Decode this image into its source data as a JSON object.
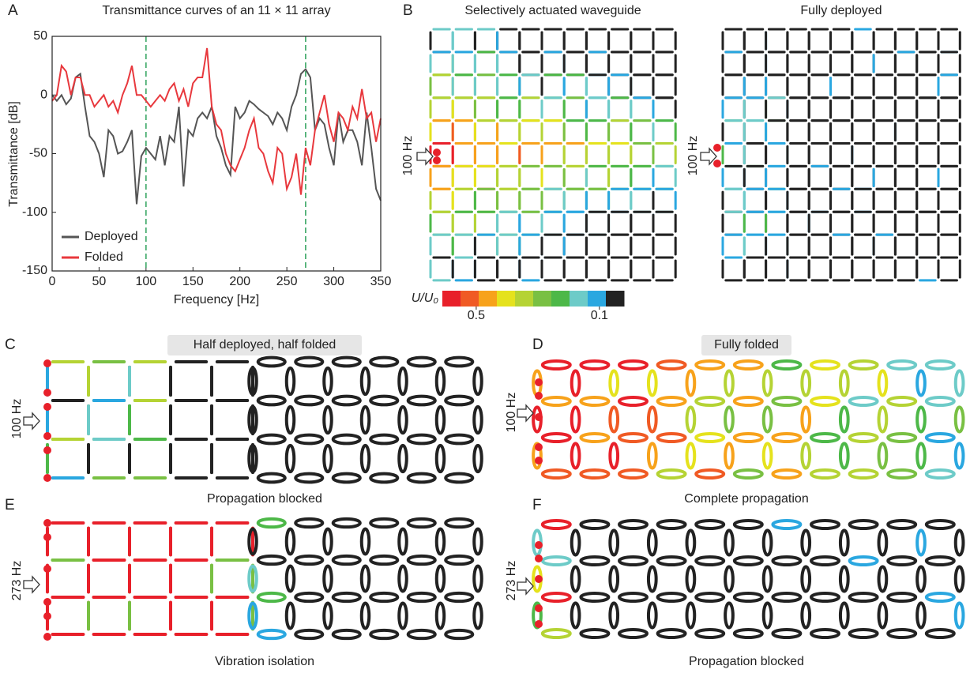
{
  "chart_data": {
    "type": "line",
    "title": "Transmittance curves of an 11 × 11 array",
    "xlabel": "Frequency [Hz]",
    "ylabel": "Transmittance [dB]",
    "x": [
      0,
      5,
      10,
      15,
      20,
      25,
      30,
      35,
      40,
      45,
      50,
      55,
      60,
      65,
      70,
      75,
      80,
      85,
      90,
      95,
      100,
      105,
      110,
      115,
      120,
      125,
      130,
      135,
      140,
      145,
      150,
      155,
      160,
      165,
      170,
      175,
      180,
      185,
      190,
      195,
      200,
      205,
      210,
      215,
      220,
      225,
      230,
      235,
      240,
      245,
      250,
      255,
      260,
      265,
      270,
      275,
      280,
      285,
      290,
      295,
      300,
      305,
      310,
      315,
      320,
      325,
      330,
      335,
      340,
      345,
      350
    ],
    "xlim": [
      0,
      350
    ],
    "ylim": [
      -150,
      50
    ],
    "xticks": [
      0,
      50,
      100,
      150,
      200,
      250,
      300,
      350
    ],
    "yticks": [
      -150,
      -100,
      -50,
      0,
      50
    ],
    "reference_lines": [
      100,
      270
    ],
    "reference_color": "#2ca05a",
    "legend": "lower left",
    "series": [
      {
        "name": "Deployed",
        "color": "#555555",
        "values": [
          0,
          -5,
          0,
          -8,
          -3,
          15,
          18,
          -10,
          -35,
          -40,
          -50,
          -70,
          -30,
          -35,
          -50,
          -48,
          -40,
          -30,
          -93,
          -52,
          -45,
          -50,
          -55,
          -35,
          -60,
          -35,
          -40,
          -10,
          -78,
          -30,
          -35,
          -20,
          -15,
          -20,
          -10,
          -35,
          -45,
          -60,
          -68,
          -10,
          -20,
          -15,
          -5,
          -8,
          -12,
          -15,
          -18,
          -25,
          -15,
          -20,
          -30,
          -10,
          0,
          18,
          22,
          15,
          -30,
          -20,
          -25,
          -45,
          -60,
          -15,
          -40,
          -30,
          -30,
          -40,
          -60,
          -15,
          -45,
          -80,
          -90
        ]
      },
      {
        "name": "Folded",
        "color": "#e8383d",
        "values": [
          -5,
          0,
          25,
          20,
          0,
          15,
          15,
          0,
          0,
          -10,
          -5,
          0,
          -10,
          -5,
          -15,
          0,
          10,
          25,
          0,
          0,
          -5,
          -10,
          -5,
          0,
          -5,
          5,
          10,
          -5,
          5,
          -10,
          10,
          15,
          15,
          40,
          -10,
          -25,
          -30,
          -50,
          -60,
          -65,
          -55,
          -45,
          -30,
          -20,
          -45,
          -50,
          -65,
          -75,
          -45,
          -50,
          -80,
          -70,
          -50,
          -85,
          -45,
          -60,
          -30,
          -15,
          0,
          -25,
          -40,
          -15,
          -20,
          -30,
          -10,
          -20,
          5,
          -20,
          -15,
          -40,
          -20
        ]
      }
    ]
  },
  "panel_labels": [
    "A",
    "B",
    "C",
    "D",
    "E",
    "F"
  ],
  "panel_b": {
    "left_title": "Selectively actuated waveguide",
    "right_title": "Fully deployed",
    "frequency": "100 Hz",
    "colorbar": {
      "label": "U/U₀",
      "range": [
        0.61,
        0.02
      ],
      "ticks": [
        0.5,
        0.1
      ],
      "colors": [
        "#e8202a",
        "#f05a24",
        "#f7a21b",
        "#e5e21d",
        "#b5d334",
        "#79c043",
        "#4db848",
        "#6dcbc8",
        "#2aa7e0",
        "#222222"
      ]
    }
  },
  "panel_c": {
    "title": "Half deployed, half folded",
    "frequency": "100 Hz",
    "caption": "Propagation blocked"
  },
  "panel_d": {
    "title": "Fully folded",
    "frequency": "100 Hz",
    "caption": "Complete propagation"
  },
  "panel_e": {
    "frequency": "273 Hz",
    "caption": "Vibration isolation"
  },
  "panel_f": {
    "frequency": "273 Hz",
    "caption": "Propagation blocked"
  }
}
